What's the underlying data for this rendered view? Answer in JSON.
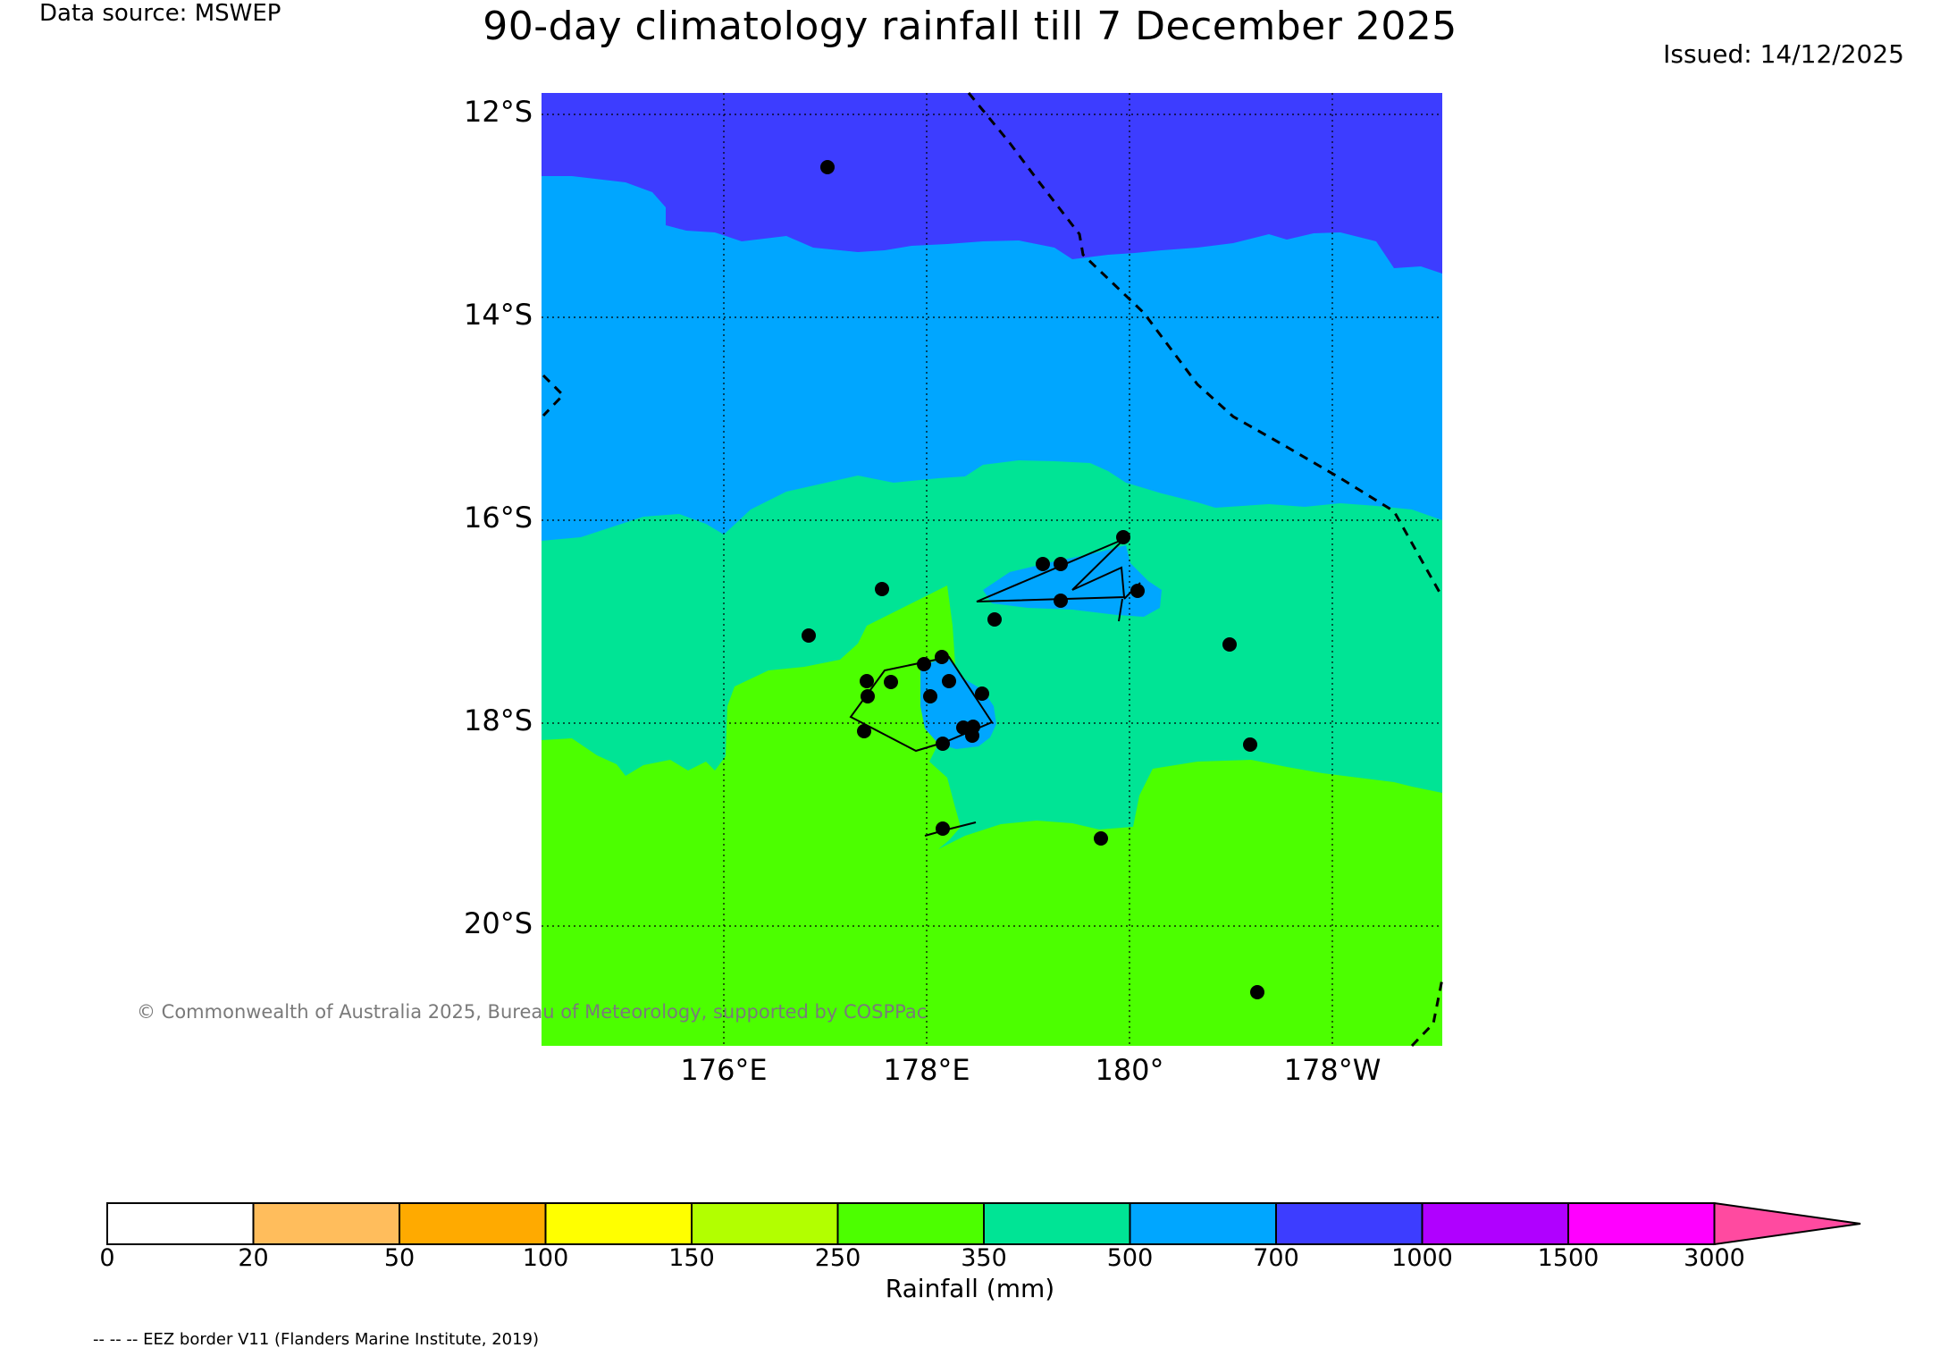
{
  "header": {
    "data_source": "Data source: MSWEP",
    "title": "90-day climatology rainfall till 7 December 2025",
    "issued": "Issued: 14/12/2025"
  },
  "map": {
    "lat_labels": [
      "12°S",
      "14°S",
      "16°S",
      "18°S",
      "20°S"
    ],
    "lon_labels": [
      "176°E",
      "178°E",
      "180°",
      "178°W"
    ],
    "colors": {
      "band_1000": "#3d3dff",
      "band_700": "#00a6ff",
      "band_500": "#00e495",
      "band_350": "#4cff00",
      "gridline": "#000000"
    },
    "copyright": "© Commonwealth of Australia 2025, Bureau of Meteorology, supported by COSPPac"
  },
  "colorbar": {
    "title": "Rainfall (mm)",
    "ticks": [
      "0",
      "20",
      "50",
      "100",
      "150",
      "250",
      "350",
      "500",
      "700",
      "1000",
      "1500",
      "3000"
    ],
    "colors": [
      "#ffffff",
      "#ffbd5c",
      "#ffaa00",
      "#ffff00",
      "#b2ff00",
      "#4cff00",
      "#00e495",
      "#00a6ff",
      "#3d3dff",
      "#b000ff",
      "#ff00ff",
      "#ff4aa0"
    ]
  },
  "legend": {
    "eez_note": "-- -- -- EEZ border V11 (Flanders Marine Institute, 2019)"
  }
}
